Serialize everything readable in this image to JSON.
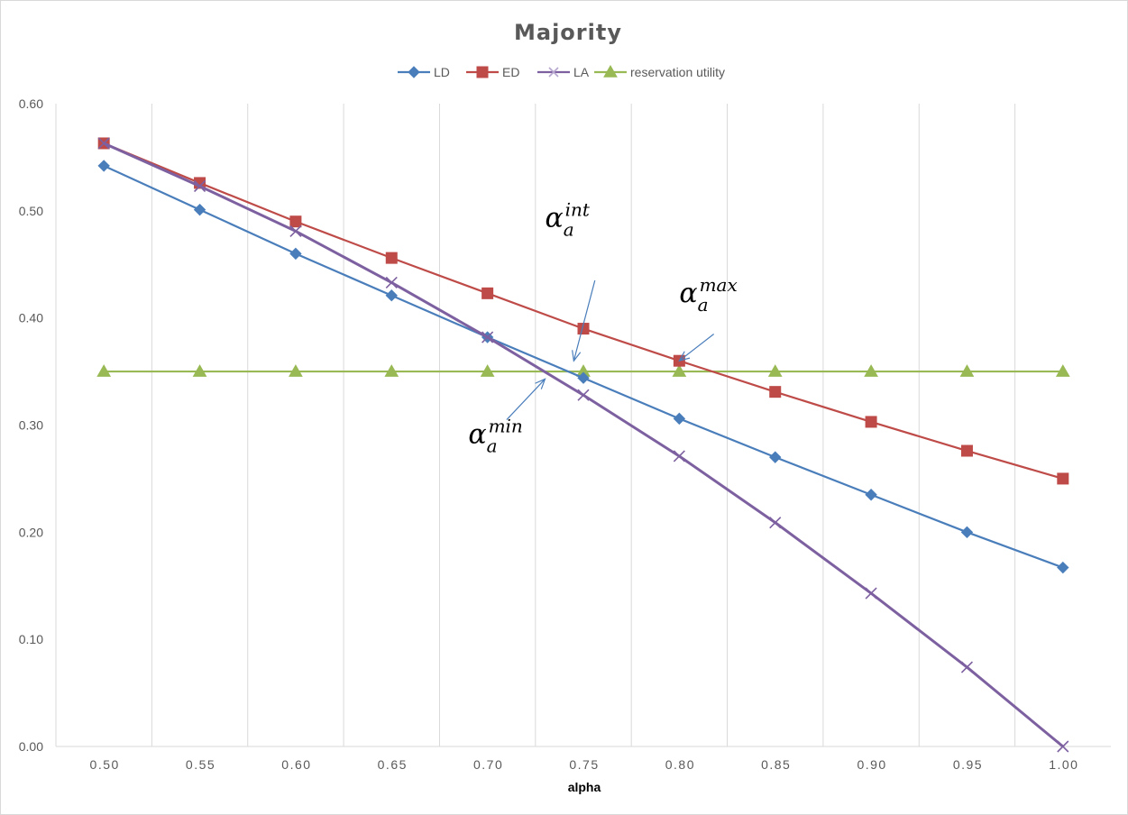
{
  "chart_data": {
    "type": "line",
    "title": "Majority",
    "xlabel": "alpha",
    "ylabel": "",
    "x": [
      0.5,
      0.55,
      0.6,
      0.65,
      0.7,
      0.75,
      0.8,
      0.85,
      0.9,
      0.95,
      1.0
    ],
    "x_tick_labels": [
      "0.50",
      "0.55",
      "0.60",
      "0.65",
      "0.70",
      "0.75",
      "0.80",
      "0.85",
      "0.90",
      "0.95",
      "1.00"
    ],
    "ylim": [
      0,
      0.6
    ],
    "y_ticks": [
      0,
      0.1,
      0.2,
      0.3,
      0.4,
      0.5,
      0.6
    ],
    "y_tick_labels": [
      "0.00",
      "0.10",
      "0.20",
      "0.30",
      "0.40",
      "0.50",
      "0.60"
    ],
    "grid": "vertical",
    "legend_position": "top",
    "series": [
      {
        "name": "LD",
        "color": "#4A7EBB",
        "marker": "diamond",
        "values": [
          0.542,
          0.501,
          0.46,
          0.421,
          0.382,
          0.344,
          0.306,
          0.27,
          0.235,
          0.2,
          0.167
        ]
      },
      {
        "name": "ED",
        "color": "#BE4B48",
        "marker": "square",
        "values": [
          0.563,
          0.526,
          0.49,
          0.456,
          0.423,
          0.39,
          0.36,
          0.331,
          0.303,
          0.276,
          0.25
        ]
      },
      {
        "name": "LA",
        "color": "#7D60A0",
        "marker": "x",
        "values": [
          0.563,
          0.523,
          0.481,
          0.433,
          0.382,
          0.328,
          0.271,
          0.209,
          0.143,
          0.074,
          0.0
        ]
      },
      {
        "name": "reservation utility",
        "color": "#98B954",
        "marker": "triangle",
        "values": [
          0.35,
          0.35,
          0.35,
          0.35,
          0.35,
          0.35,
          0.35,
          0.35,
          0.35,
          0.35,
          0.35
        ]
      }
    ],
    "annotations": [
      {
        "id": "int",
        "base": "α",
        "sub": "a",
        "sup": "int",
        "at": [
          0.73,
          0.485
        ],
        "arrow_from": [
          0.756,
          0.435
        ],
        "arrow_to": [
          0.745,
          0.36
        ]
      },
      {
        "id": "max",
        "base": "α",
        "sub": "a",
        "sup": "max",
        "at": [
          0.8,
          0.415
        ],
        "arrow_from": [
          0.818,
          0.385
        ],
        "arrow_to": [
          0.8,
          0.36
        ]
      },
      {
        "id": "min",
        "base": "α",
        "sub": "a",
        "sup": "min",
        "at": [
          0.69,
          0.283
        ],
        "arrow_from": [
          0.71,
          0.305
        ],
        "arrow_to": [
          0.73,
          0.343
        ]
      }
    ]
  }
}
